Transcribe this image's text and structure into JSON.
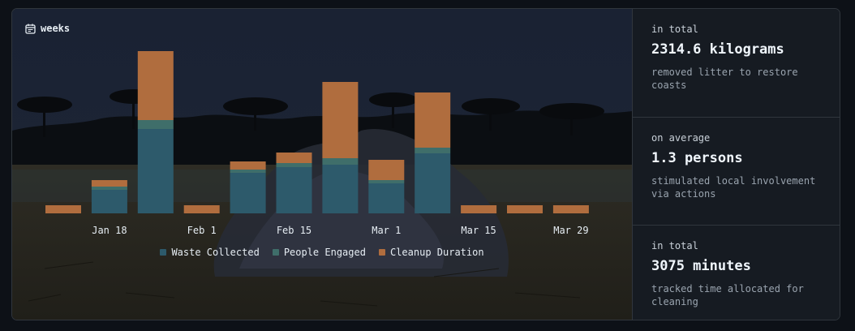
{
  "range_label": "weeks",
  "colors": {
    "waste": "#2d5a6b",
    "people": "#3f6e6a",
    "duration": "#b06d3e"
  },
  "legend": [
    {
      "label": "Waste Collected",
      "color": "#2d5a6b"
    },
    {
      "label": "People Engaged",
      "color": "#3f6e6a"
    },
    {
      "label": "Cleanup Duration",
      "color": "#b06d3e"
    }
  ],
  "chart_data": {
    "type": "bar",
    "stacked": true,
    "categories": [
      "",
      "Jan 18",
      "",
      "Feb 1",
      "",
      "Feb 15",
      "",
      "Mar 1",
      "",
      "Mar 15",
      "",
      "Mar 29"
    ],
    "x_tick_labels": [
      "Jan 18",
      "Feb 1",
      "Feb 15",
      "Mar 1",
      "Mar 15",
      "Mar 29"
    ],
    "series": [
      {
        "name": "Waste Collected",
        "values": [
          0,
          29,
          104,
          0,
          50,
          57,
          60,
          37,
          74,
          0,
          0,
          0
        ]
      },
      {
        "name": "People Engaged",
        "values": [
          0,
          4,
          11,
          0,
          4,
          5,
          8,
          4,
          7,
          0,
          0,
          0
        ]
      },
      {
        "name": "Cleanup Duration",
        "values": [
          10,
          8,
          85,
          10,
          10,
          13,
          94,
          25,
          68,
          10,
          10,
          10
        ]
      }
    ],
    "grid": false,
    "legend_position": "bottom"
  },
  "stats": [
    {
      "pre": "in total",
      "value": "2314.6 kilograms",
      "desc": "removed litter to restore coasts"
    },
    {
      "pre": "on average",
      "value": "1.3 persons",
      "desc": "stimulated local involvement via actions"
    },
    {
      "pre": "in total",
      "value": "3075 minutes",
      "desc": "tracked time allocated for cleaning"
    }
  ]
}
